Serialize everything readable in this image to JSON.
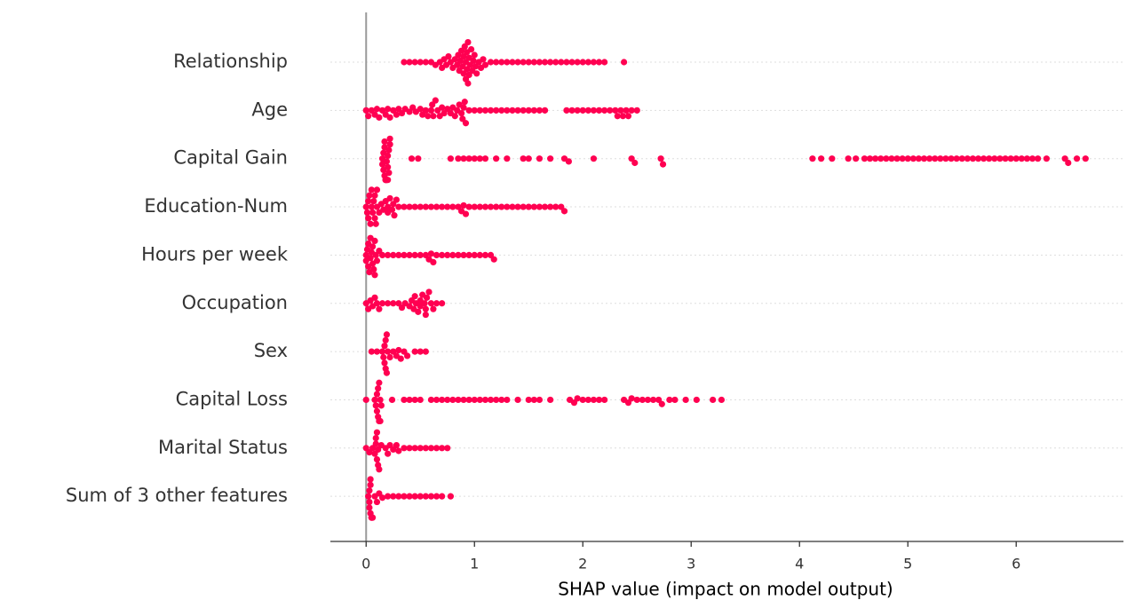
{
  "chart_data": {
    "type": "beeswarm",
    "xlabel": "SHAP value (impact on model output)",
    "color": "#ff0051",
    "xlim": [
      -0.33,
      6.99
    ],
    "xticks": [
      0,
      1,
      2,
      3,
      4,
      5,
      6
    ],
    "grid": true,
    "categories": [
      "Relationship",
      "Age",
      "Capital Gain",
      "Education-Num",
      "Hours per week",
      "Occupation",
      "Sex",
      "Capital Loss",
      "Marital Status",
      "Sum of 3 other features"
    ],
    "points": [
      [
        0.35,
        0.4,
        0.45,
        0.5,
        0.55,
        0.6,
        0.64,
        0.68,
        0.7,
        0.72,
        0.74,
        0.76,
        0.78,
        0.8,
        0.82,
        0.84,
        0.85,
        0.86,
        0.87,
        0.88,
        0.89,
        0.9,
        0.9,
        0.91,
        0.92,
        0.92,
        0.93,
        0.93,
        0.94,
        0.94,
        0.95,
        0.95,
        0.96,
        0.97,
        0.98,
        0.99,
        1.0,
        1.01,
        1.02,
        1.04,
        1.06,
        1.08,
        1.1,
        1.15,
        1.2,
        1.25,
        1.3,
        1.35,
        1.4,
        1.45,
        1.5,
        1.55,
        1.6,
        1.65,
        1.7,
        1.75,
        1.8,
        1.85,
        1.9,
        1.95,
        2.0,
        2.05,
        2.1,
        2.15,
        2.2,
        2.38
      ],
      [
        0.0,
        0.02,
        0.05,
        0.08,
        0.1,
        0.12,
        0.15,
        0.18,
        0.2,
        0.22,
        0.25,
        0.28,
        0.3,
        0.33,
        0.36,
        0.4,
        0.43,
        0.46,
        0.5,
        0.52,
        0.55,
        0.57,
        0.6,
        0.61,
        0.62,
        0.64,
        0.66,
        0.68,
        0.7,
        0.72,
        0.75,
        0.78,
        0.8,
        0.82,
        0.84,
        0.86,
        0.88,
        0.89,
        0.9,
        0.91,
        0.92,
        0.95,
        1.0,
        1.05,
        1.1,
        1.15,
        1.2,
        1.25,
        1.3,
        1.35,
        1.4,
        1.45,
        1.5,
        1.55,
        1.6,
        1.65,
        1.85,
        1.9,
        1.95,
        2.0,
        2.05,
        2.1,
        2.15,
        2.2,
        2.25,
        2.3,
        2.32,
        2.35,
        2.37,
        2.4,
        2.42,
        2.45,
        2.5
      ],
      [
        0.15,
        0.16,
        0.17,
        0.18,
        0.19,
        0.2,
        0.21,
        0.22,
        0.15,
        0.16,
        0.17,
        0.18,
        0.19,
        0.2,
        0.21,
        0.22,
        0.17,
        0.18,
        0.19,
        0.2,
        0.42,
        0.48,
        0.78,
        0.85,
        0.9,
        0.95,
        1.0,
        1.05,
        1.1,
        1.2,
        1.3,
        1.45,
        1.5,
        1.6,
        1.7,
        1.83,
        1.87,
        2.1,
        2.45,
        2.48,
        2.72,
        2.74,
        4.12,
        4.2,
        4.3,
        4.45,
        4.52,
        4.6,
        4.65,
        4.7,
        4.75,
        4.8,
        4.85,
        4.9,
        4.95,
        5.0,
        5.05,
        5.1,
        5.15,
        5.2,
        5.25,
        5.3,
        5.35,
        5.4,
        5.45,
        5.5,
        5.55,
        5.6,
        5.65,
        5.7,
        5.75,
        5.8,
        5.85,
        5.9,
        5.95,
        6.0,
        6.05,
        6.1,
        6.15,
        6.2,
        6.28,
        6.45,
        6.48,
        6.56,
        6.64
      ],
      [
        0.0,
        0.01,
        0.02,
        0.03,
        0.04,
        0.05,
        0.06,
        0.07,
        0.08,
        0.09,
        0.1,
        0.12,
        0.14,
        0.16,
        0.18,
        0.2,
        0.22,
        0.24,
        0.26,
        0.28,
        0.3,
        0.02,
        0.05,
        0.08,
        0.1,
        0.2,
        0.25,
        0.35,
        0.4,
        0.45,
        0.5,
        0.55,
        0.6,
        0.65,
        0.7,
        0.75,
        0.8,
        0.85,
        0.88,
        0.9,
        0.92,
        0.95,
        1.0,
        1.05,
        1.1,
        1.15,
        1.2,
        1.25,
        1.3,
        1.35,
        1.4,
        1.45,
        1.5,
        1.55,
        1.6,
        1.65,
        1.7,
        1.75,
        1.8,
        1.83
      ],
      [
        0.0,
        0.01,
        0.02,
        0.03,
        0.04,
        0.05,
        0.06,
        0.07,
        0.08,
        0.09,
        0.1,
        0.0,
        0.02,
        0.04,
        0.06,
        0.08,
        0.12,
        0.15,
        0.2,
        0.25,
        0.3,
        0.35,
        0.4,
        0.45,
        0.5,
        0.55,
        0.58,
        0.6,
        0.62,
        0.65,
        0.7,
        0.75,
        0.8,
        0.85,
        0.9,
        0.95,
        1.0,
        1.05,
        1.1,
        1.15,
        1.18
      ],
      [
        0.0,
        0.02,
        0.04,
        0.06,
        0.08,
        0.1,
        0.12,
        0.15,
        0.2,
        0.25,
        0.3,
        0.33,
        0.36,
        0.4,
        0.42,
        0.44,
        0.46,
        0.48,
        0.5,
        0.52,
        0.54,
        0.55,
        0.56,
        0.58,
        0.6,
        0.45,
        0.5,
        0.55,
        0.62,
        0.65,
        0.7
      ],
      [
        0.05,
        0.1,
        0.15,
        0.16,
        0.17,
        0.18,
        0.19,
        0.2,
        0.17,
        0.18,
        0.19,
        0.22,
        0.25,
        0.28,
        0.3,
        0.32,
        0.35,
        0.38,
        0.45,
        0.5,
        0.55
      ],
      [
        0.0,
        0.08,
        0.09,
        0.1,
        0.11,
        0.12,
        0.13,
        0.14,
        0.1,
        0.11,
        0.12,
        0.13,
        0.24,
        0.35,
        0.4,
        0.45,
        0.5,
        0.6,
        0.65,
        0.7,
        0.75,
        0.8,
        0.85,
        0.9,
        0.95,
        1.0,
        1.05,
        1.1,
        1.15,
        1.2,
        1.25,
        1.3,
        1.4,
        1.5,
        1.55,
        1.6,
        1.7,
        1.88,
        1.92,
        1.95,
        2.0,
        2.05,
        2.1,
        2.15,
        2.2,
        2.38,
        2.42,
        2.45,
        2.5,
        2.55,
        2.6,
        2.65,
        2.7,
        2.73,
        2.8,
        2.85,
        2.95,
        3.05,
        3.2,
        3.28
      ],
      [
        0.0,
        0.03,
        0.06,
        0.08,
        0.09,
        0.1,
        0.11,
        0.12,
        0.09,
        0.1,
        0.11,
        0.14,
        0.18,
        0.2,
        0.22,
        0.25,
        0.28,
        0.3,
        0.35,
        0.4,
        0.45,
        0.5,
        0.55,
        0.6,
        0.65,
        0.7,
        0.75
      ],
      [
        0.02,
        0.03,
        0.04,
        0.05,
        0.06,
        0.03,
        0.04,
        0.05,
        0.03,
        0.04,
        0.08,
        0.1,
        0.12,
        0.15,
        0.2,
        0.25,
        0.3,
        0.35,
        0.4,
        0.45,
        0.5,
        0.55,
        0.6,
        0.65,
        0.7,
        0.78
      ]
    ]
  }
}
